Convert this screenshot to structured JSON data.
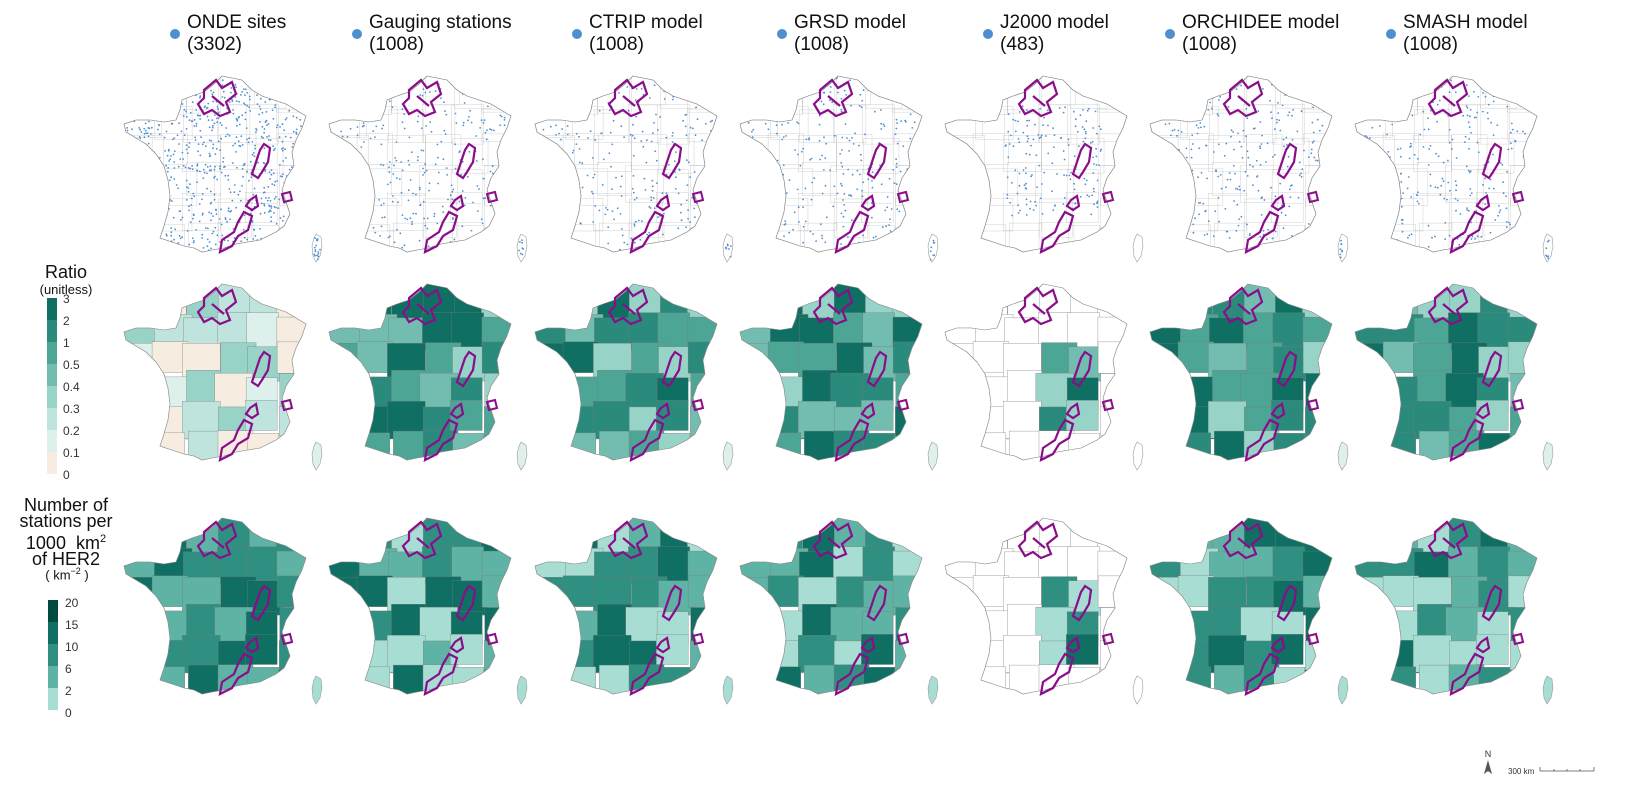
{
  "columns": [
    {
      "name": "ONDE sites",
      "count": "(3302)"
    },
    {
      "name": "Gauging stations",
      "count": "(1008)"
    },
    {
      "name": "CTRIP model",
      "count": "(1008)"
    },
    {
      "name": "GRSD model",
      "count": "(1008)"
    },
    {
      "name": "J2000 model",
      "count": "(483)"
    },
    {
      "name": "ORCHIDEE model",
      "count": "(1008)"
    },
    {
      "name": "SMASH model",
      "count": "(1008)"
    }
  ],
  "point_color": "#4f8fd0",
  "highlight_color": "#8a0d8a",
  "legend_ratio": {
    "title": "Ratio",
    "subtitle": "(unitless)",
    "ticks": [
      "3",
      "2",
      "1",
      "0.5",
      "0.4",
      "0.3",
      "0.2",
      "0.1",
      "0"
    ],
    "colors": [
      "#0f6f62",
      "#2a8a7c",
      "#4da596",
      "#72bdb0",
      "#98d3c8",
      "#bfe4dd",
      "#ddf0ec",
      "#f6ede0"
    ]
  },
  "legend_density": {
    "title_lines": [
      "Number of",
      "stations per",
      "1000  km",
      "of HER2"
    ],
    "title_sup": "2",
    "unit": "( km",
    "unit_sup": "−2",
    "unit_close": " )",
    "ticks": [
      "20",
      "15",
      "10",
      "6",
      "2",
      "0"
    ],
    "colors": [
      "#004b3f",
      "#0f6f62",
      "#2f8f80",
      "#5eb3a4",
      "#a7ddd3"
    ]
  },
  "scale_bar": {
    "label": "300 km",
    "north": "N"
  }
}
